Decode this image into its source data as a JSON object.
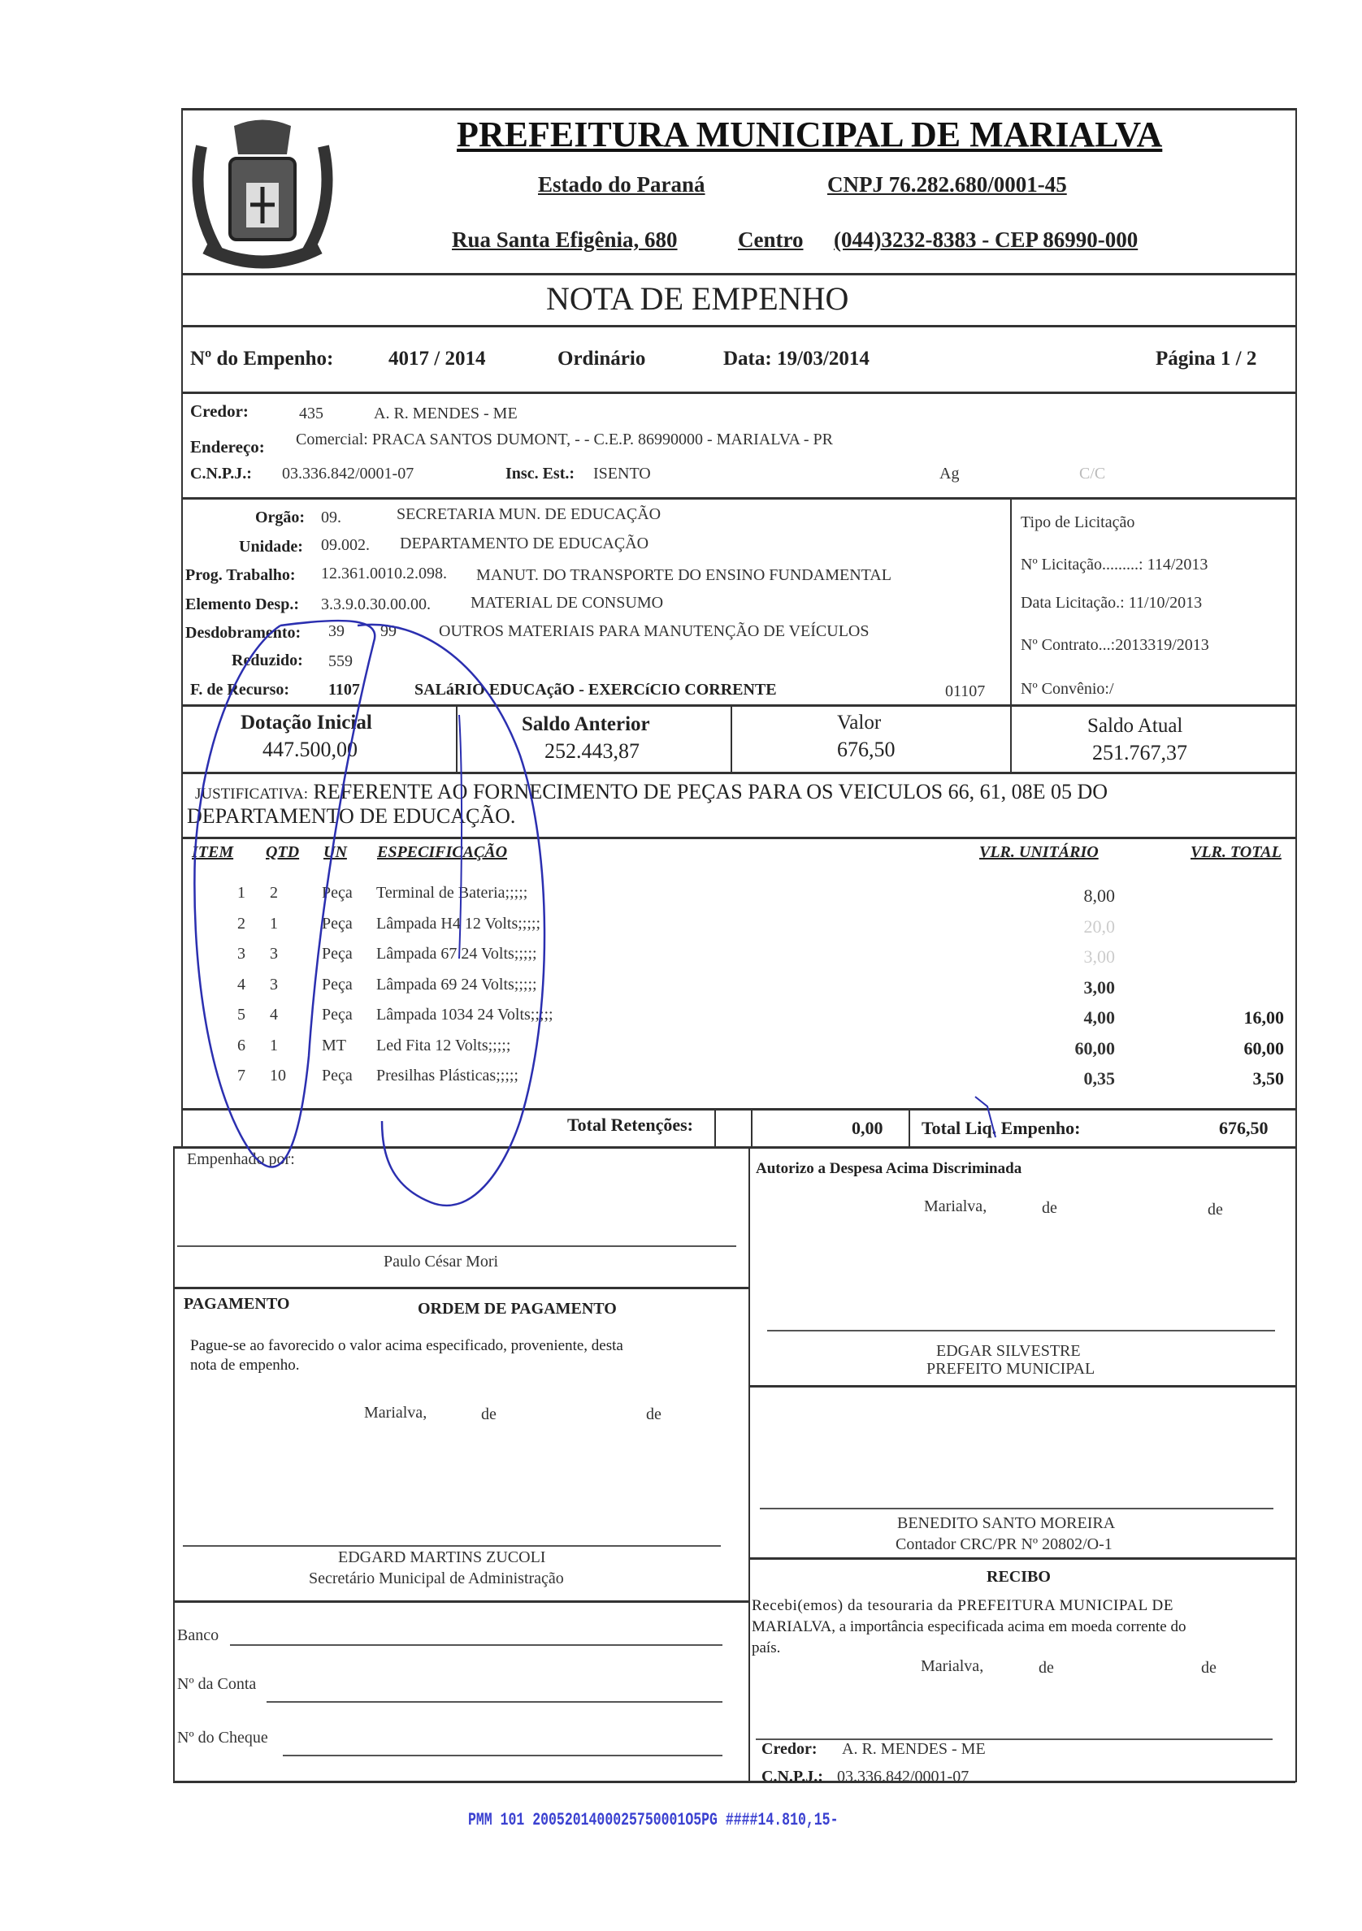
{
  "header": {
    "title": "PREFEITURA MUNICIPAL DE MARIALVA",
    "state": "Estado do Paraná",
    "cnpj": "CNPJ 76.282.680/0001-45",
    "address": "Rua Santa Efigênia, 680",
    "district": "Centro",
    "phone": "(044)3232-8383  -  CEP 86990-000",
    "doc_title": "NOTA  DE  EMPENHO"
  },
  "empenho": {
    "label": "Nº do Empenho:",
    "number": "4017 / 2014",
    "type": "Ordinário",
    "date": "Data: 19/03/2014",
    "page": "Página  1 / 2"
  },
  "credor": {
    "label": "Credor:",
    "code": "435",
    "name": "A. R. MENDES - ME",
    "address_label": "Endereço:",
    "address": "Comercial: PRACA SANTOS DUMONT, - - C.E.P. 86990000 - MARIALVA - PR",
    "cnpj_label": "C.N.P.J.:",
    "cnpj": "03.336.842/0001-07",
    "insc_label": "Insc. Est.:",
    "insc": "ISENTO",
    "ag": "Ag",
    "cc": "C/C"
  },
  "orcamento": {
    "orgao_label": "Orgão:",
    "orgao_code": "09.",
    "orgao": "SECRETARIA MUN. DE EDUCAÇÃO",
    "unidade_label": "Unidade:",
    "unidade_code": "09.002.",
    "unidade": "DEPARTAMENTO DE EDUCAÇÃO",
    "prog_label": "Prog. Trabalho:",
    "prog_code": "12.361.0010.2.098.",
    "prog": "MANUT. DO TRANSPORTE DO ENSINO FUNDAMENTAL",
    "elem_label": "Elemento Desp.:",
    "elem_code": "3.3.9.0.30.00.00.",
    "elem": "MATERIAL DE CONSUMO",
    "desd_label": "Desdobramento:",
    "desd_code1": "39",
    "desd_code2": "99",
    "desd": "OUTROS MATERIAIS PARA MANUTENÇÃO DE VEÍCULOS",
    "red_label": "Reduzido:",
    "red": "559",
    "rec_label": "F. de Recurso:",
    "rec_code": "1107",
    "rec": "SALáRIO EDUCAçãO - EXERCíCIO CORRENTE",
    "rec_code2": "01107"
  },
  "licitacao": {
    "tipo": "Tipo de Licitação",
    "numero": "Nº Licitação.........: 114/2013",
    "data": "Data Licitação.: 11/10/2013",
    "contrato": "Nº Contrato...:2013319/2013",
    "convenio": "Nº Convênio:/"
  },
  "saldos": {
    "dotacao_label": "Dotação Inicial",
    "dotacao": "447.500,00",
    "anterior_label": "Saldo Anterior",
    "anterior": "252.443,87",
    "valor_label": "Valor",
    "valor": "676,50",
    "atual_label": "Saldo Atual",
    "atual": "251.767,37"
  },
  "justificativa": {
    "label": "JUSTIFICATIVA:",
    "line1": "REFERENTE AO FORNECIMENTO DE PEÇAS PARA OS VEICULOS 66, 61, 08E 05 DO",
    "line2": "DEPARTAMENTO DE EDUCAÇÃO."
  },
  "items": {
    "headers": {
      "item": "ITEM",
      "qtd": "QTD",
      "un": "UN",
      "spec": "ESPECIFICAÇÃO",
      "unit": "VLR. UNITÁRIO",
      "total": "VLR. TOTAL"
    },
    "rows": [
      {
        "item": "1",
        "qtd": "2",
        "un": "Peça",
        "spec": "Terminal de Bateria;;;;;",
        "unit": "8,00",
        "total": ""
      },
      {
        "item": "2",
        "qtd": "1",
        "un": "Peça",
        "spec": "Lâmpada H4 12 Volts;;;;;",
        "unit": "20,0",
        "total": ""
      },
      {
        "item": "3",
        "qtd": "3",
        "un": "Peça",
        "spec": "Lâmpada 67 24 Volts;;;;;",
        "unit": "3,00",
        "total": ""
      },
      {
        "item": "4",
        "qtd": "3",
        "un": "Peça",
        "spec": "Lâmpada 69 24 Volts;;;;;",
        "unit": "3,00",
        "total": ""
      },
      {
        "item": "5",
        "qtd": "4",
        "un": "Peça",
        "spec": "Lâmpada 1034 24 Volts;;;;;",
        "unit": "4,00",
        "total": "16,00"
      },
      {
        "item": "6",
        "qtd": "1",
        "un": "MT",
        "spec": "Led Fita 12 Volts;;;;;",
        "unit": "60,00",
        "total": "60,00"
      },
      {
        "item": "7",
        "qtd": "10",
        "un": "Peça",
        "spec": "Presilhas Plásticas;;;;;",
        "unit": "0,35",
        "total": "3,50"
      }
    ]
  },
  "totais": {
    "ret_label": "Total Retenções:",
    "ret": "0,00",
    "liq_label": "Total Liq. Empenho:",
    "liq": "676,50"
  },
  "empenhado": {
    "label": "Empenhado por:",
    "name": "Paulo César Mori"
  },
  "autorizo": {
    "label": "Autorizo a Despesa Acima Discriminada",
    "place": "Marialva,",
    "de1": "de",
    "de2": "de",
    "name": "EDGAR SILVESTRE",
    "role": "PREFEITO MUNICIPAL"
  },
  "pagamento": {
    "label": "PAGAMENTO",
    "title": "ORDEM DE PAGAMENTO",
    "text1": "Pague-se ao favorecido o valor acima especificado, proveniente, desta",
    "text2": "nota de empenho.",
    "place": "Marialva,",
    "de1": "de",
    "de2": "de",
    "name": "EDGARD MARTINS ZUCOLI",
    "role": "Secretário Municipal de Administração"
  },
  "contador": {
    "name": "BENEDITO SANTO MOREIRA",
    "role": "Contador CRC/PR Nº 20802/O-1"
  },
  "banco": {
    "banco": "Banco",
    "conta": "Nº da Conta",
    "cheque": "Nº do Cheque"
  },
  "recibo": {
    "title": "RECIBO",
    "text1": "Recebi(emos) da tesouraria da PREFEITURA MUNICIPAL DE",
    "text2": "MARIALVA, a importância especificada acima em moeda corrente do",
    "text3": "país.",
    "place": "Marialva,",
    "de1": "de",
    "de2": "de",
    "credor_label": "Credor:",
    "credor": "A. R. MENDES - ME",
    "cnpj_label": "C.N.P.J.:",
    "cnpj": "03.336.842/0001-07"
  },
  "stamp": "PMM 101 2005201400025750001O5PG ####14.810,15-",
  "colors": {
    "ink": "#222222",
    "pen": "#2b2fb0",
    "stamp": "#3a40d0"
  }
}
